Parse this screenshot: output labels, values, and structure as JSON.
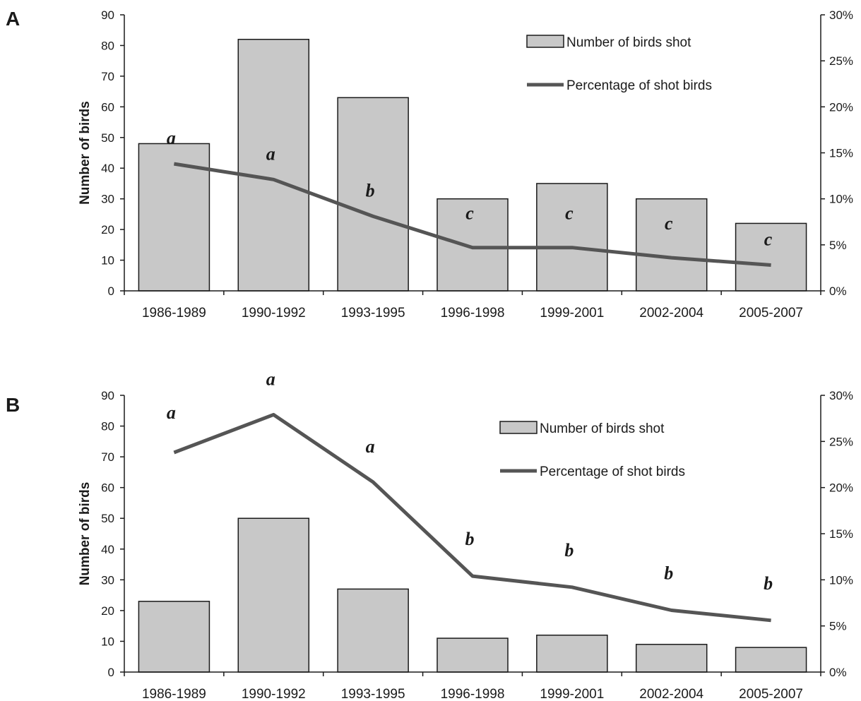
{
  "chart_data": [
    {
      "type": "bar",
      "panel": "A",
      "categories": [
        "1986-1989",
        "1990-1992",
        "1993-1995",
        "1996-1998",
        "1999-2001",
        "2002-2004",
        "2005-2007"
      ],
      "series": [
        {
          "name": "Number of birds shot",
          "type": "bar",
          "axis": "left",
          "values": [
            48,
            82,
            63,
            30,
            35,
            30,
            22
          ]
        },
        {
          "name": "Percentage of shot birds",
          "type": "line",
          "axis": "right",
          "values": [
            13.8,
            12.1,
            8.1,
            4.7,
            4.7,
            3.6,
            2.8
          ]
        }
      ],
      "significance_labels": [
        "a",
        "a",
        "b",
        "c",
        "c",
        "c",
        "c"
      ],
      "ylabel": "Number of birds",
      "ylim": [
        0,
        90
      ],
      "yticks": [
        0,
        10,
        20,
        30,
        40,
        50,
        60,
        70,
        80,
        90
      ],
      "y2lim": [
        0,
        30
      ],
      "y2ticks": [
        "0%",
        "5%",
        "10%",
        "15%",
        "20%",
        "25%",
        "30%"
      ],
      "legend_position": "top-right",
      "grid": false
    },
    {
      "type": "bar",
      "panel": "B",
      "categories": [
        "1986-1989",
        "1990-1992",
        "1993-1995",
        "1996-1998",
        "1999-2001",
        "2002-2004",
        "2005-2007"
      ],
      "series": [
        {
          "name": "Number of birds shot",
          "type": "bar",
          "axis": "left",
          "values": [
            23,
            50,
            27,
            11,
            12,
            9,
            8
          ]
        },
        {
          "name": "Percentage of shot birds",
          "type": "line",
          "axis": "right",
          "values": [
            23.8,
            27.9,
            20.6,
            10.4,
            9.2,
            6.7,
            5.6
          ]
        }
      ],
      "significance_labels": [
        "a",
        "a",
        "a",
        "b",
        "b",
        "b",
        "b"
      ],
      "ylabel": "Number of birds",
      "ylim": [
        0,
        90
      ],
      "yticks": [
        0,
        10,
        20,
        30,
        40,
        50,
        60,
        70,
        80,
        90
      ],
      "y2lim": [
        0,
        30
      ],
      "y2ticks": [
        "0%",
        "5%",
        "10%",
        "15%",
        "20%",
        "25%",
        "30%"
      ],
      "legend_position": "top-right",
      "grid": false
    }
  ],
  "colors": {
    "bar_fill": "#c8c8c8",
    "line": "#555555",
    "axis": "#1a1a1a"
  }
}
